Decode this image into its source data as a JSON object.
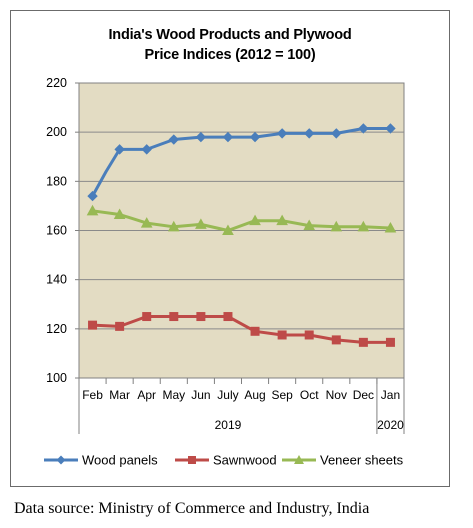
{
  "chart_data": {
    "type": "line",
    "title_line1": "India's Wood Products and Plywood",
    "title_line2": "Price Indices (2012 = 100)",
    "categories": [
      "Feb",
      "Mar",
      "Apr",
      "May",
      "Jun",
      "July",
      "Aug",
      "Sep",
      "Oct",
      "Nov",
      "Dec",
      "Jan"
    ],
    "year_labels": [
      "2019",
      "2020"
    ],
    "ylim": [
      100,
      220
    ],
    "yticks": [
      100,
      120,
      140,
      160,
      180,
      200,
      220
    ],
    "x": [
      0,
      0.5,
      1,
      2,
      3,
      4,
      5,
      6,
      7,
      8,
      9,
      10,
      11
    ],
    "grid": true,
    "legend_position": "bottom",
    "plot_background": "#e3dcc3",
    "series": [
      {
        "name": "Wood panels",
        "color": "#4a7ebb",
        "marker": "diamond",
        "values": [
          174,
          184,
          193,
          193,
          197,
          198,
          198,
          198,
          199.5,
          199.5,
          199.5,
          201.5,
          201.5
        ]
      },
      {
        "name": "Sawnwood",
        "color": "#be4b48",
        "marker": "square",
        "values": [
          121.5,
          null,
          121,
          125,
          125,
          125,
          125,
          119,
          117.5,
          117.5,
          115.5,
          114.5,
          114.5
        ]
      },
      {
        "name": "Veneer sheets",
        "color": "#98b954",
        "marker": "triangle",
        "values": [
          168,
          null,
          166.5,
          163,
          161.5,
          162.5,
          160,
          164,
          164,
          162,
          161.5,
          161.5,
          161
        ]
      }
    ]
  },
  "footer": {
    "source": "Data source: Ministry of Commerce and Industry, India"
  }
}
